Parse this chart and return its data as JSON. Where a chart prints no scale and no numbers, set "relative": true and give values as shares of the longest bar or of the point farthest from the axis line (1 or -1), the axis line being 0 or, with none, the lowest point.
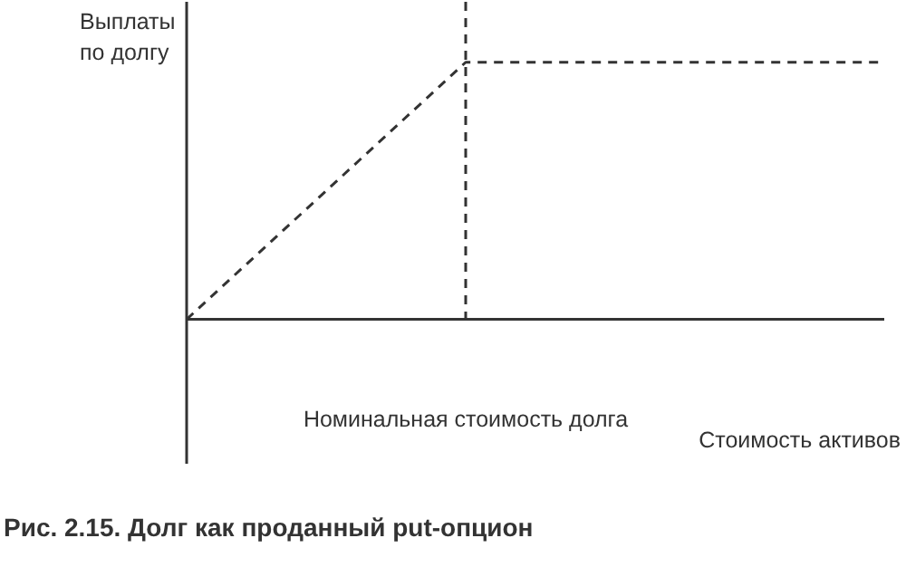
{
  "chart_data": {
    "type": "line",
    "relative": true,
    "xlabel": "Стоимость активов",
    "ylabel": "Выплаты по долгу",
    "categories": [
      null,
      null,
      null,
      null,
      null,
      null
    ],
    "series": [
      {
        "color": "#333333",
        "values": [
          0,
          0.5,
          1,
          1,
          1,
          1
        ]
      }
    ],
    "line_style": "dashed",
    "marker": "none",
    "grid": false,
    "legend": false,
    "annotations": [
      "Номинальная стоимость долга",
      "Рис. 2.15. Долг как проданный put-опцион"
    ]
  }
}
